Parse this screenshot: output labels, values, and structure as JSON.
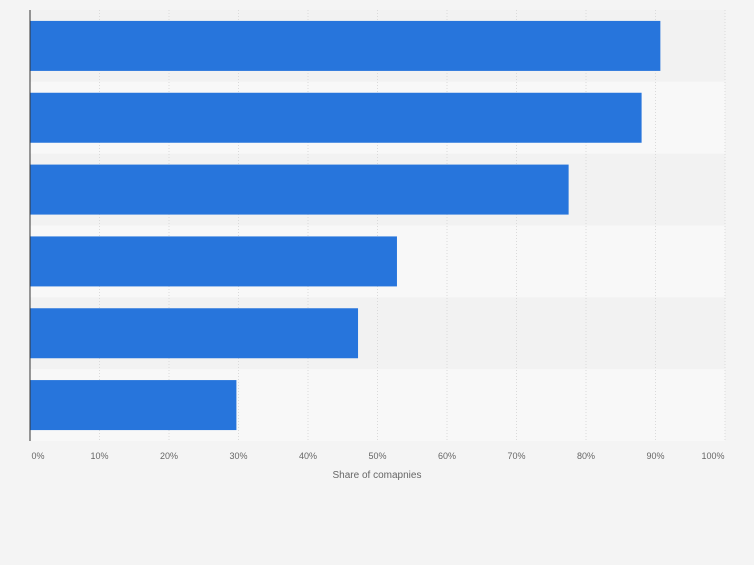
{
  "chart_data": {
    "type": "bar",
    "orientation": "horizontal",
    "title": "",
    "categories": [
      "",
      "",
      "",
      "",
      "",
      ""
    ],
    "values": [
      90.7,
      88.0,
      77.5,
      52.8,
      47.2,
      29.7
    ],
    "xlabel": "Share of comapnies",
    "ylabel": "",
    "xlim": [
      0,
      100
    ],
    "ticks": [
      "0%",
      "10%",
      "20%",
      "30%",
      "40%",
      "50%",
      "60%",
      "70%",
      "80%",
      "90%",
      "100%"
    ],
    "grid": true,
    "bar_color": "#2775dc"
  }
}
